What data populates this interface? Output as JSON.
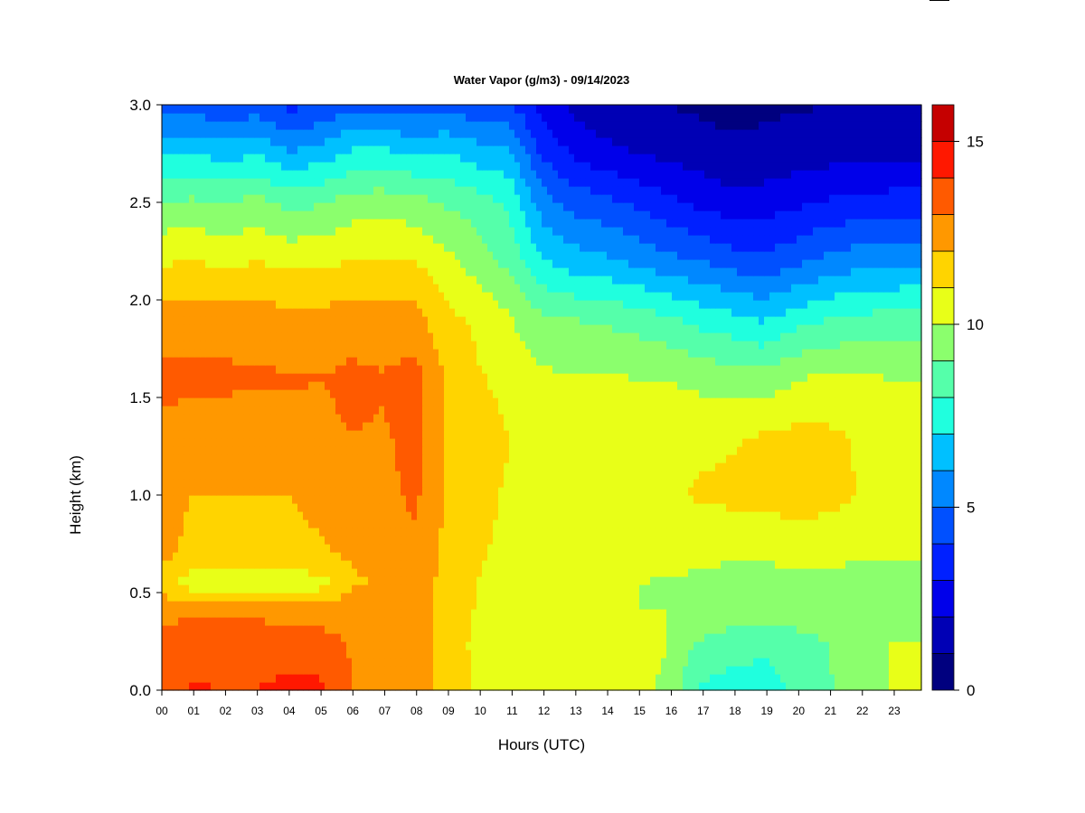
{
  "chart_data": {
    "type": "heatmap",
    "title": "Water Vapor (g/m3) - 09/14/2023",
    "xlabel": "Hours (UTC)",
    "ylabel": "Height (km)",
    "x_ticks": [
      "00",
      "01",
      "02",
      "03",
      "04",
      "05",
      "06",
      "07",
      "08",
      "09",
      "10",
      "11",
      "12",
      "13",
      "14",
      "15",
      "16",
      "17",
      "18",
      "19",
      "20",
      "21",
      "22",
      "23"
    ],
    "y_ticks": [
      "0.0",
      "0.5",
      "1.0",
      "1.5",
      "2.0",
      "2.5",
      "3.0"
    ],
    "xlim": [
      0,
      24
    ],
    "ylim": [
      0,
      3.0
    ],
    "colorbar": {
      "range": [
        0,
        16
      ],
      "step": 1,
      "tick_labels": [
        "0",
        "5",
        "10",
        "15"
      ],
      "colors": [
        "#00007f",
        "#0000b5",
        "#0000ea",
        "#0020ff",
        "#0050ff",
        "#0088ff",
        "#00c0ff",
        "#20ffde",
        "#55ffaa",
        "#8bff6d",
        "#e8ff18",
        "#ffd400",
        "#ff9800",
        "#ff5a00",
        "#ff1800",
        "#c50000"
      ]
    },
    "grid": false,
    "x_hours": [
      0,
      1,
      2,
      3,
      4,
      5,
      6,
      7,
      8,
      9,
      10,
      11,
      12,
      13,
      14,
      15,
      16,
      17,
      18,
      19,
      20,
      21,
      22,
      23,
      24
    ],
    "profiles": [
      {
        "h": 0.0,
        "v": [
          13.8,
          14.1,
          14.0,
          14.0,
          14.4,
          14.2,
          13.0,
          12.9,
          12.6,
          11.5,
          10.9,
          10.8,
          10.5,
          10.7,
          10.6,
          10.4,
          9.7,
          7.8,
          7.6,
          7.4,
          8.1,
          8.8,
          9.7,
          10.0,
          10.0
        ]
      },
      {
        "h": 0.25,
        "v": [
          13.5,
          13.6,
          13.3,
          13.3,
          13.4,
          13.4,
          12.9,
          12.8,
          12.6,
          11.4,
          10.8,
          10.5,
          10.1,
          10.8,
          10.9,
          10.6,
          10.0,
          8.9,
          8.5,
          8.3,
          8.6,
          9.0,
          9.5,
          10.0,
          10.0
        ]
      },
      {
        "h": 0.4,
        "v": [
          12.6,
          12.9,
          12.9,
          12.9,
          12.7,
          12.6,
          12.5,
          12.4,
          12.8,
          11.5,
          10.9,
          10.3,
          10.0,
          10.3,
          10.3,
          10.0,
          10.0,
          9.9,
          9.6,
          9.5,
          9.5,
          9.6,
          9.7,
          9.8,
          9.9
        ]
      },
      {
        "h": 0.55,
        "v": [
          11.6,
          10.4,
          10.4,
          10.4,
          10.4,
          10.6,
          11.9,
          12.1,
          12.7,
          11.6,
          11.0,
          10.6,
          10.3,
          10.0,
          10.0,
          10.0,
          9.9,
          9.7,
          9.3,
          9.3,
          9.5,
          9.6,
          9.3,
          9.2,
          9.3
        ]
      },
      {
        "h": 0.7,
        "v": [
          12.2,
          11.8,
          11.6,
          11.7,
          11.8,
          11.9,
          12.1,
          12.2,
          12.8,
          11.7,
          11.1,
          10.8,
          10.6,
          10.6,
          10.6,
          10.6,
          10.5,
          10.3,
          10.3,
          10.3,
          10.4,
          10.4,
          10.3,
          10.2,
          10.2
        ]
      },
      {
        "h": 1.0,
        "v": [
          12.2,
          12.0,
          12.0,
          12.0,
          12.0,
          12.2,
          12.6,
          12.7,
          13.2,
          11.9,
          11.2,
          10.9,
          10.7,
          10.7,
          10.8,
          10.8,
          10.9,
          11.1,
          11.2,
          11.3,
          11.4,
          11.3,
          11.0,
          10.9,
          10.9
        ]
      },
      {
        "h": 1.3,
        "v": [
          12.7,
          12.6,
          12.5,
          12.5,
          12.7,
          12.8,
          13.0,
          12.9,
          13.3,
          12.0,
          11.4,
          11.0,
          10.6,
          10.5,
          10.6,
          10.6,
          10.7,
          10.8,
          10.9,
          11.1,
          11.3,
          11.2,
          10.9,
          10.8,
          10.8
        ]
      },
      {
        "h": 1.6,
        "v": [
          13.3,
          13.2,
          13.2,
          13.1,
          13.1,
          13.0,
          13.2,
          13.1,
          13.4,
          11.9,
          11.1,
          10.7,
          10.2,
          10.1,
          10.1,
          10.0,
          10.0,
          9.7,
          9.5,
          9.4,
          9.9,
          10.2,
          10.1,
          10.0,
          10.0
        ]
      },
      {
        "h": 1.9,
        "v": [
          12.4,
          12.6,
          12.6,
          12.5,
          12.4,
          12.3,
          12.6,
          12.4,
          12.4,
          11.3,
          10.8,
          10.1,
          9.2,
          9.0,
          8.9,
          8.6,
          8.2,
          7.7,
          7.4,
          6.9,
          7.6,
          8.0,
          8.3,
          8.4,
          8.6
        ]
      },
      {
        "h": 2.2,
        "v": [
          10.9,
          11.0,
          10.8,
          11.0,
          10.7,
          10.8,
          11.0,
          11.1,
          11.0,
          10.3,
          9.5,
          8.7,
          7.1,
          6.5,
          6.2,
          5.8,
          5.3,
          5.0,
          4.5,
          4.3,
          4.7,
          5.3,
          5.6,
          5.7,
          5.9
        ]
      },
      {
        "h": 2.5,
        "v": [
          9.1,
          9.2,
          9.0,
          9.3,
          8.7,
          8.9,
          9.5,
          9.6,
          9.4,
          8.9,
          8.5,
          7.8,
          5.5,
          4.6,
          4.3,
          3.8,
          3.2,
          2.8,
          2.4,
          2.5,
          2.8,
          3.1,
          3.3,
          3.4,
          3.5
        ]
      },
      {
        "h": 2.75,
        "v": [
          6.8,
          7.0,
          6.6,
          7.0,
          6.1,
          6.5,
          7.2,
          7.3,
          6.9,
          7.1,
          6.5,
          6.3,
          3.9,
          2.9,
          2.3,
          2.0,
          1.8,
          1.5,
          1.2,
          1.3,
          1.5,
          1.6,
          1.8,
          1.8,
          1.8
        ]
      },
      {
        "h": 3.0,
        "v": [
          4.6,
          4.5,
          4.2,
          4.4,
          3.7,
          4.0,
          4.8,
          4.7,
          4.4,
          4.6,
          4.3,
          4.2,
          2.6,
          1.7,
          1.3,
          1.1,
          1.0,
          0.8,
          0.7,
          0.8,
          0.9,
          1.0,
          1.0,
          1.1,
          1.1
        ]
      }
    ]
  }
}
